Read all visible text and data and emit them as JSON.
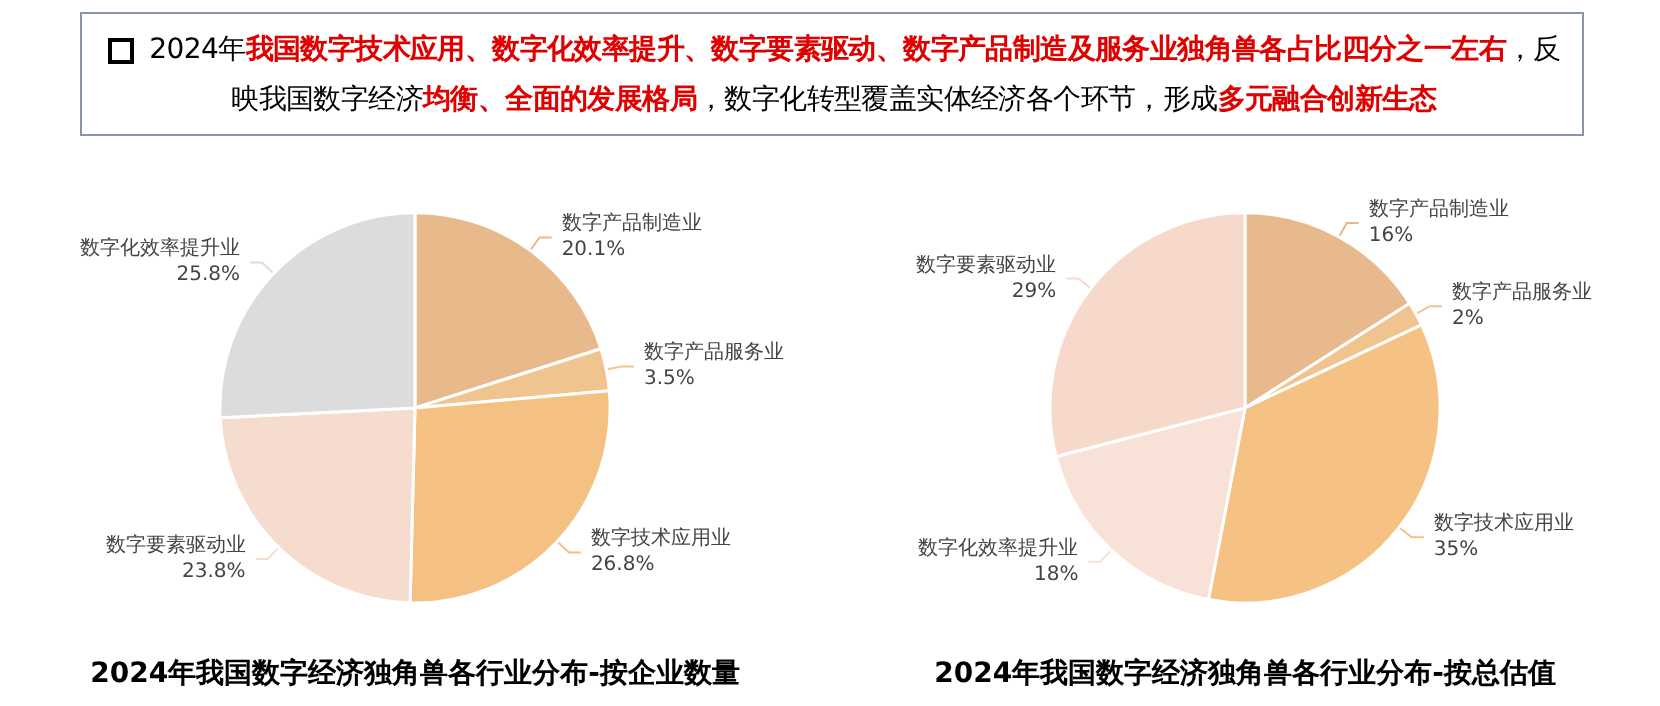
{
  "chart_data": [
    {
      "type": "other",
      "annotations": [
        "2024年",
        "我国数字技术应用、数字化效率提升、数字要素驱动、数字产品制造及服务业独角兽各占比四分之一左右",
        "，反映我国数字经济",
        "均衡、全面的发展格局",
        "，数字化转型覆盖实体经济各个环节，形成",
        "多元融合创新生态"
      ]
    },
    {
      "type": "pie",
      "title": "2024年我国数字经济独角兽各行业分布-按企业数量",
      "categories": [
        "数字产品制造业",
        "数字产品服务业",
        "数字技术应用业",
        "数字要素驱动业",
        "数字化效率提升业"
      ],
      "values": [
        20.1,
        3.5,
        26.8,
        23.8,
        25.8
      ],
      "colors": [
        "#e8b98a",
        "#f0c48f",
        "#f5c182",
        "#f6dccf",
        "#dcdcdc"
      ],
      "value_labels": [
        "20.1%",
        "3.5%",
        "26.8%",
        "23.8%",
        "25.8%"
      ]
    },
    {
      "type": "pie",
      "title": "2024年我国数字经济独角兽各行业分布-按总估值",
      "categories": [
        "数字产品制造业",
        "数字产品服务业",
        "数字技术应用业",
        "数字化效率提升业",
        "数字要素驱动业"
      ],
      "values": [
        16,
        2,
        35,
        18,
        29
      ],
      "colors": [
        "#e7b98c",
        "#f0c48e",
        "#f5c283",
        "#f8e2d8",
        "#f6d9cb"
      ],
      "value_labels": [
        "16%",
        "2%",
        "35%",
        "18%",
        "29%"
      ]
    }
  ]
}
